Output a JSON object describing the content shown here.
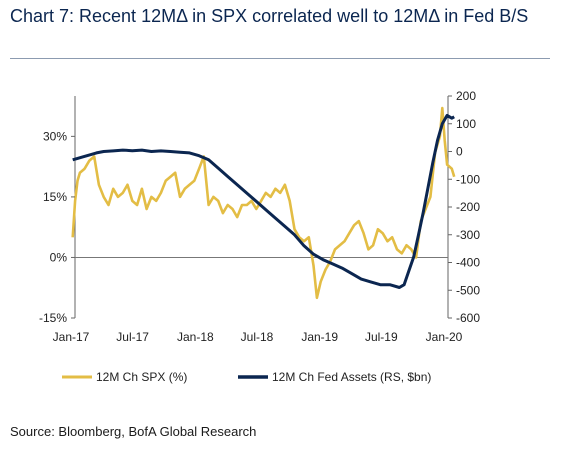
{
  "title": "Chart 7: Recent 12MΔ in SPX correlated well to 12MΔ in Fed B/S",
  "source": "Source: Bloomberg, BofA Global Research",
  "colors": {
    "spx": "#E3BD45",
    "fed": "#0B2650",
    "title": "#0B2650"
  },
  "chart_data": {
    "type": "line",
    "x_ticks": [
      "Jan-17",
      "Jul-17",
      "Jan-18",
      "Jul-18",
      "Jan-19",
      "Jul-19",
      "Jan-20"
    ],
    "y_left": {
      "ticks": [
        "30%",
        "15%",
        "0%",
        "-15%"
      ],
      "values": [
        30,
        15,
        0,
        -15
      ],
      "range": [
        -15,
        40
      ]
    },
    "y_right": {
      "ticks": [
        "200",
        "100",
        "0",
        "-100",
        "-200",
        "-300",
        "-400",
        "-500",
        "-600"
      ],
      "values": [
        200,
        100,
        0,
        -100,
        -200,
        -300,
        -400,
        -500,
        -600
      ],
      "range": [
        -600,
        200
      ]
    },
    "series": [
      {
        "name": "12M Ch SPX (%)",
        "axis": "left",
        "points": [
          [
            "2017-01-06",
            5
          ],
          [
            "2017-01-13",
            14
          ],
          [
            "2017-01-20",
            19
          ],
          [
            "2017-01-27",
            21
          ],
          [
            "2017-02-10",
            22
          ],
          [
            "2017-02-24",
            24
          ],
          [
            "2017-03-10",
            25
          ],
          [
            "2017-03-24",
            18
          ],
          [
            "2017-04-07",
            15
          ],
          [
            "2017-04-21",
            13
          ],
          [
            "2017-05-05",
            17
          ],
          [
            "2017-05-19",
            15
          ],
          [
            "2017-06-02",
            16
          ],
          [
            "2017-06-16",
            18
          ],
          [
            "2017-06-30",
            14
          ],
          [
            "2017-07-14",
            13
          ],
          [
            "2017-07-28",
            17
          ],
          [
            "2017-08-11",
            12
          ],
          [
            "2017-08-25",
            15
          ],
          [
            "2017-09-08",
            14
          ],
          [
            "2017-09-22",
            16
          ],
          [
            "2017-10-06",
            19
          ],
          [
            "2017-10-20",
            20
          ],
          [
            "2017-11-03",
            21
          ],
          [
            "2017-11-17",
            15
          ],
          [
            "2017-12-01",
            17
          ],
          [
            "2017-12-15",
            18
          ],
          [
            "2017-12-29",
            19
          ],
          [
            "2018-01-12",
            22
          ],
          [
            "2018-01-26",
            25
          ],
          [
            "2018-02-09",
            13
          ],
          [
            "2018-02-23",
            15
          ],
          [
            "2018-03-09",
            14
          ],
          [
            "2018-03-23",
            11
          ],
          [
            "2018-04-06",
            13
          ],
          [
            "2018-04-20",
            12
          ],
          [
            "2018-05-04",
            10
          ],
          [
            "2018-05-18",
            13
          ],
          [
            "2018-06-01",
            13
          ],
          [
            "2018-06-15",
            14
          ],
          [
            "2018-06-29",
            12
          ],
          [
            "2018-07-13",
            14
          ],
          [
            "2018-07-27",
            16
          ],
          [
            "2018-08-10",
            15
          ],
          [
            "2018-08-24",
            17
          ],
          [
            "2018-09-07",
            16
          ],
          [
            "2018-09-21",
            18
          ],
          [
            "2018-10-05",
            14
          ],
          [
            "2018-10-19",
            7
          ],
          [
            "2018-11-02",
            5
          ],
          [
            "2018-11-16",
            4
          ],
          [
            "2018-11-30",
            5
          ],
          [
            "2018-12-14",
            -2
          ],
          [
            "2018-12-24",
            -10
          ],
          [
            "2019-01-04",
            -6
          ],
          [
            "2019-01-18",
            -3
          ],
          [
            "2019-02-01",
            -1
          ],
          [
            "2019-02-15",
            2
          ],
          [
            "2019-03-01",
            3
          ],
          [
            "2019-03-15",
            4
          ],
          [
            "2019-03-29",
            6
          ],
          [
            "2019-04-12",
            8
          ],
          [
            "2019-04-26",
            9
          ],
          [
            "2019-05-10",
            6
          ],
          [
            "2019-05-24",
            2
          ],
          [
            "2019-06-07",
            3
          ],
          [
            "2019-06-21",
            7
          ],
          [
            "2019-07-05",
            6
          ],
          [
            "2019-07-19",
            4
          ],
          [
            "2019-08-02",
            5
          ],
          [
            "2019-08-16",
            2
          ],
          [
            "2019-08-30",
            1
          ],
          [
            "2019-09-13",
            3
          ],
          [
            "2019-09-27",
            2
          ],
          [
            "2019-10-11",
            0
          ],
          [
            "2019-10-25",
            9
          ],
          [
            "2019-11-08",
            12
          ],
          [
            "2019-11-22",
            15
          ],
          [
            "2019-12-06",
            26
          ],
          [
            "2019-12-20",
            30
          ],
          [
            "2019-12-27",
            37
          ],
          [
            "2020-01-03",
            29
          ],
          [
            "2020-01-10",
            23
          ],
          [
            "2020-01-24",
            22
          ],
          [
            "2020-01-31",
            20
          ]
        ]
      },
      {
        "name": "12M Ch Fed Assets (RS, $bn)",
        "axis": "right",
        "points": [
          [
            "2017-01-06",
            -30
          ],
          [
            "2017-01-20",
            -25
          ],
          [
            "2017-02-03",
            -20
          ],
          [
            "2017-02-17",
            -15
          ],
          [
            "2017-03-03",
            -10
          ],
          [
            "2017-03-17",
            -5
          ],
          [
            "2017-04-07",
            0
          ],
          [
            "2017-05-05",
            2
          ],
          [
            "2017-06-02",
            5
          ],
          [
            "2017-06-30",
            3
          ],
          [
            "2017-07-28",
            5
          ],
          [
            "2017-08-25",
            0
          ],
          [
            "2017-09-22",
            2
          ],
          [
            "2017-10-20",
            0
          ],
          [
            "2017-11-17",
            -3
          ],
          [
            "2017-12-15",
            -5
          ],
          [
            "2018-01-12",
            -15
          ],
          [
            "2018-02-09",
            -30
          ],
          [
            "2018-03-09",
            -60
          ],
          [
            "2018-04-06",
            -90
          ],
          [
            "2018-05-04",
            -120
          ],
          [
            "2018-06-01",
            -150
          ],
          [
            "2018-06-29",
            -180
          ],
          [
            "2018-07-27",
            -210
          ],
          [
            "2018-08-24",
            -240
          ],
          [
            "2018-09-21",
            -270
          ],
          [
            "2018-10-19",
            -300
          ],
          [
            "2018-11-16",
            -340
          ],
          [
            "2018-12-14",
            -370
          ],
          [
            "2019-01-11",
            -390
          ],
          [
            "2019-02-08",
            -405
          ],
          [
            "2019-03-08",
            -420
          ],
          [
            "2019-04-05",
            -440
          ],
          [
            "2019-05-03",
            -460
          ],
          [
            "2019-05-31",
            -470
          ],
          [
            "2019-06-28",
            -480
          ],
          [
            "2019-07-26",
            -480
          ],
          [
            "2019-08-23",
            -490
          ],
          [
            "2019-09-06",
            -480
          ],
          [
            "2019-09-20",
            -430
          ],
          [
            "2019-10-04",
            -380
          ],
          [
            "2019-10-18",
            -300
          ],
          [
            "2019-11-01",
            -220
          ],
          [
            "2019-11-15",
            -130
          ],
          [
            "2019-11-29",
            -40
          ],
          [
            "2019-12-13",
            40
          ],
          [
            "2019-12-27",
            100
          ],
          [
            "2020-01-10",
            130
          ],
          [
            "2020-01-24",
            120
          ],
          [
            "2020-01-31",
            125
          ]
        ]
      }
    ]
  }
}
